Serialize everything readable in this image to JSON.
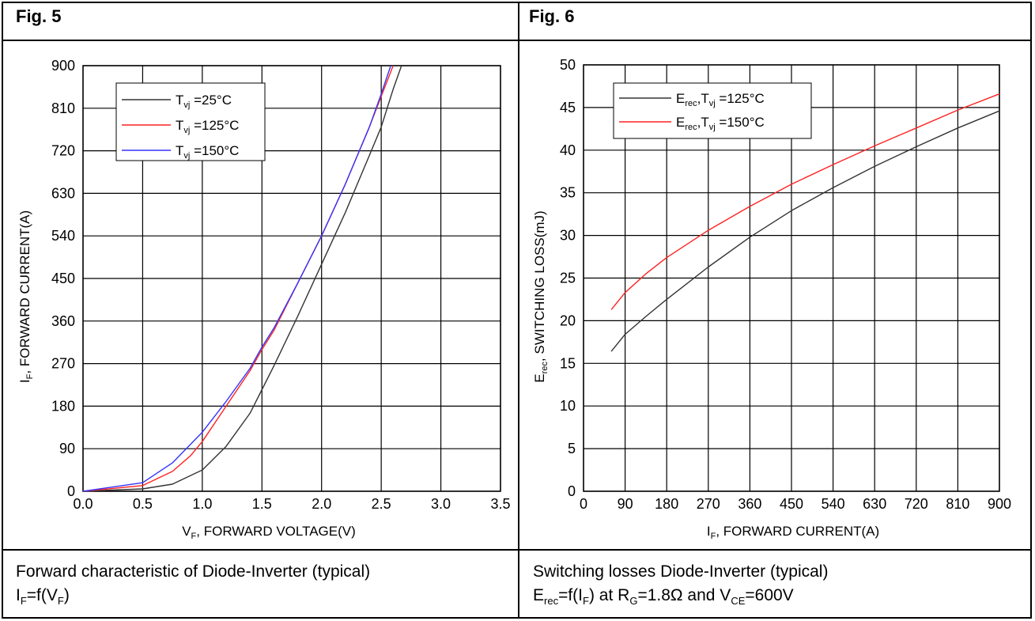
{
  "figures": {
    "left": {
      "label": "Fig. 5",
      "caption_line1": "Forward characteristic of Diode-Inverter (typical)"
    },
    "right": {
      "label": "Fig. 6",
      "caption_line1": "Switching losses Diode-Inverter (typical)"
    }
  },
  "chart_data": [
    {
      "type": "line",
      "xlabel": "V_F, FORWARD VOLTAGE(V)",
      "ylabel": "I_F, FORWARD CURRENT(A)",
      "xlim": [
        0,
        3.5
      ],
      "ylim": [
        0,
        900
      ],
      "xticks": [
        "0.0",
        "0.5",
        "1.0",
        "1.5",
        "2.0",
        "2.5",
        "3.0",
        "3.5"
      ],
      "yticks": [
        "0",
        "90",
        "180",
        "270",
        "360",
        "450",
        "540",
        "630",
        "720",
        "810",
        "900"
      ],
      "grid": true,
      "legend_position": "top-left",
      "series": [
        {
          "name": "T_vj =25°C",
          "color": "#333333",
          "points": [
            [
              0,
              0
            ],
            [
              0.5,
              5
            ],
            [
              0.75,
              15
            ],
            [
              1.0,
              45
            ],
            [
              1.2,
              95
            ],
            [
              1.4,
              165
            ],
            [
              1.5,
              215
            ],
            [
              1.6,
              265
            ],
            [
              1.8,
              370
            ],
            [
              2.0,
              480
            ],
            [
              2.2,
              590
            ],
            [
              2.4,
              710
            ],
            [
              2.5,
              770
            ],
            [
              2.6,
              850
            ],
            [
              2.67,
              900
            ]
          ]
        },
        {
          "name": "T_vj =125°C",
          "color": "#ff2222",
          "points": [
            [
              0,
              0
            ],
            [
              0.5,
              12
            ],
            [
              0.75,
              42
            ],
            [
              0.9,
              75
            ],
            [
              1.0,
              105
            ],
            [
              1.2,
              180
            ],
            [
              1.4,
              255
            ],
            [
              1.5,
              300
            ],
            [
              1.6,
              340
            ],
            [
              1.8,
              440
            ],
            [
              2.0,
              540
            ],
            [
              2.2,
              650
            ],
            [
              2.4,
              770
            ],
            [
              2.5,
              835
            ],
            [
              2.6,
              900
            ]
          ]
        },
        {
          "name": "T_vj =150°C",
          "color": "#3333ff",
          "points": [
            [
              0,
              0
            ],
            [
              0.5,
              18
            ],
            [
              0.75,
              60
            ],
            [
              1.0,
              125
            ],
            [
              1.2,
              190
            ],
            [
              1.4,
              260
            ],
            [
              1.5,
              305
            ],
            [
              1.6,
              345
            ],
            [
              1.8,
              440
            ],
            [
              2.0,
              540
            ],
            [
              2.2,
              650
            ],
            [
              2.4,
              770
            ],
            [
              2.5,
              840
            ],
            [
              2.58,
              900
            ]
          ]
        }
      ]
    },
    {
      "type": "line",
      "xlabel": "I_F, FORWARD CURRENT(A)",
      "ylabel": "E_rec, SWITCHING LOSS(mJ)",
      "xlim": [
        0,
        900
      ],
      "ylim": [
        0,
        50
      ],
      "xticks": [
        "0",
        "90",
        "180",
        "270",
        "360",
        "450",
        "540",
        "630",
        "720",
        "810",
        "900"
      ],
      "yticks": [
        "0",
        "5",
        "10",
        "15",
        "20",
        "25",
        "30",
        "35",
        "40",
        "45",
        "50"
      ],
      "grid": true,
      "legend_position": "top-left",
      "series": [
        {
          "name": "E_rec,T_vj =125°C",
          "color": "#333333",
          "points": [
            [
              60,
              16.4
            ],
            [
              90,
              18.4
            ],
            [
              135,
              20.5
            ],
            [
              180,
              22.5
            ],
            [
              270,
              26.3
            ],
            [
              360,
              29.8
            ],
            [
              450,
              32.9
            ],
            [
              540,
              35.6
            ],
            [
              630,
              38.1
            ],
            [
              720,
              40.4
            ],
            [
              810,
              42.6
            ],
            [
              900,
              44.6
            ]
          ]
        },
        {
          "name": "E_rec,T_vj =150°C",
          "color": "#ff2222",
          "points": [
            [
              60,
              21.3
            ],
            [
              90,
              23.3
            ],
            [
              135,
              25.5
            ],
            [
              180,
              27.4
            ],
            [
              270,
              30.6
            ],
            [
              360,
              33.4
            ],
            [
              450,
              36.0
            ],
            [
              540,
              38.3
            ],
            [
              630,
              40.5
            ],
            [
              720,
              42.6
            ],
            [
              810,
              44.7
            ],
            [
              900,
              46.6
            ]
          ]
        }
      ]
    }
  ]
}
